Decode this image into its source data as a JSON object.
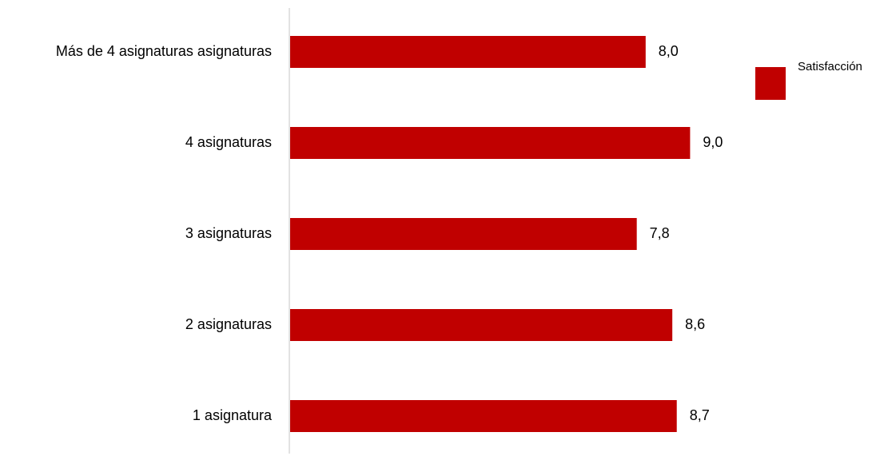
{
  "chart_data": {
    "type": "bar",
    "orientation": "horizontal",
    "categories": [
      "Más  de 4 asignaturas asignaturas",
      "4 asignaturas",
      "3 asignaturas",
      "2 asignaturas",
      "1 asignatura"
    ],
    "series": [
      {
        "name": "Satisfacción",
        "values": [
          8.0,
          9.0,
          7.8,
          8.6,
          8.7
        ],
        "value_labels": [
          "8,0",
          "9,0",
          "7,8",
          "8,6",
          "8,7"
        ],
        "color": "#C00000"
      }
    ],
    "title": "",
    "xlabel": "",
    "ylabel": "",
    "xlim": [
      0,
      10
    ],
    "grid": false,
    "legend_position": "right"
  },
  "colors": {
    "bar": "#C00000",
    "axis_line": "#D9D9D9"
  }
}
